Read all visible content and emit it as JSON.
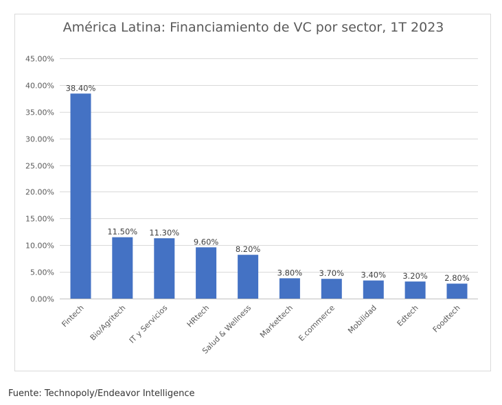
{
  "chart_data": {
    "type": "bar",
    "title": "América Latina: Financiamiento de VC por sector, 1T 2023",
    "xlabel": "",
    "ylabel": "",
    "categories": [
      "Fintech",
      "Bio/Agritech",
      "IT y Servicios",
      "HRtech",
      "Salud & Wellness",
      "Markettech",
      "E.commerce",
      "Mobilidad",
      "Edtech",
      "Foodtech"
    ],
    "values": [
      38.4,
      11.5,
      11.3,
      9.6,
      8.2,
      3.8,
      3.7,
      3.4,
      3.2,
      2.8
    ],
    "value_labels": [
      "38.40%",
      "11.50%",
      "11.30%",
      "9.60%",
      "8.20%",
      "3.80%",
      "3.70%",
      "3.40%",
      "3.20%",
      "2.80%"
    ],
    "y_ticks": [
      0,
      5,
      10,
      15,
      20,
      25,
      30,
      35,
      40,
      45
    ],
    "y_tick_labels": [
      "0.00%",
      "5.00%",
      "10.00%",
      "15.00%",
      "20.00%",
      "25.00%",
      "30.00%",
      "35.00%",
      "40.00%",
      "45.00%"
    ],
    "ylim": [
      0,
      45
    ],
    "grid": true,
    "legend": "none",
    "bar_color": "#4472c4"
  },
  "source_note": "Fuente: Technopoly/Endeavor Intelligence"
}
